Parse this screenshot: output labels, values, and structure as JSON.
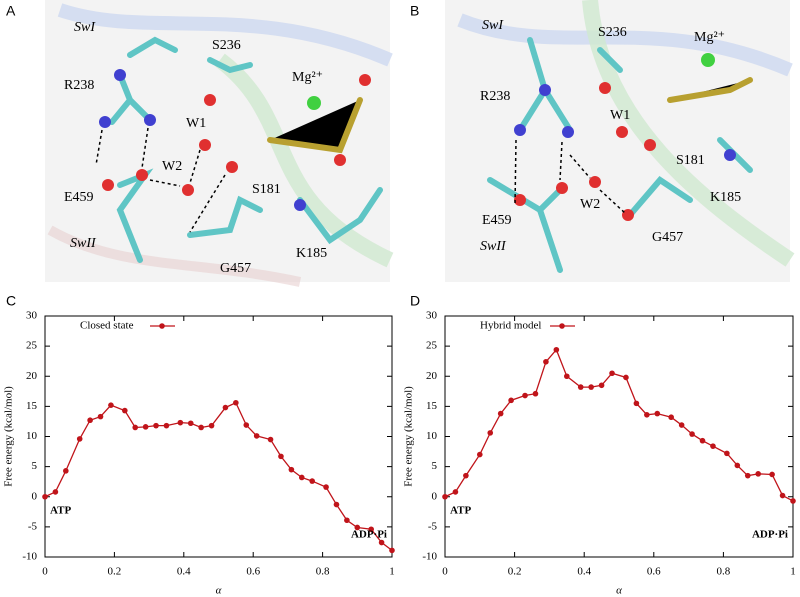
{
  "panels": [
    {
      "letter": "A",
      "labels": [
        "SwI",
        "S236",
        "R238",
        "Mg²⁺",
        "W1",
        "W2",
        "E459",
        "S181",
        "SwII",
        "G457",
        "K185"
      ]
    },
    {
      "letter": "B",
      "labels": [
        "SwI",
        "S236",
        "Mg²⁺",
        "R238",
        "W1",
        "S181",
        "E459",
        "W2",
        "K185",
        "SwII",
        "G457"
      ]
    }
  ],
  "chart_data": [
    {
      "type": "line",
      "panel": "C",
      "xlabel": "α",
      "ylabel": "Free energy (kcal/mol)",
      "xlim": [
        0,
        1
      ],
      "ylim": [
        -10,
        30
      ],
      "xticks": [
        0,
        0.2,
        0.4,
        0.6,
        0.8,
        1
      ],
      "yticks": [
        -10,
        -5,
        0,
        5,
        10,
        15,
        20,
        25,
        30
      ],
      "annotations": [
        "ATP",
        "ADP·Pi"
      ],
      "x": [
        0,
        0.03,
        0.06,
        0.1,
        0.13,
        0.16,
        0.19,
        0.23,
        0.26,
        0.29,
        0.32,
        0.35,
        0.39,
        0.42,
        0.45,
        0.48,
        0.52,
        0.55,
        0.58,
        0.61,
        0.65,
        0.68,
        0.71,
        0.74,
        0.77,
        0.81,
        0.84,
        0.87,
        0.9,
        0.94,
        0.97,
        1
      ],
      "series": [
        {
          "name": "Closed state",
          "color": "#c0141a",
          "values": [
            0,
            0.8,
            4.3,
            9.6,
            12.7,
            13.3,
            15.2,
            14.3,
            11.5,
            11.6,
            11.8,
            11.8,
            12.3,
            12.2,
            11.5,
            11.8,
            14.8,
            15.6,
            11.9,
            10.1,
            9.5,
            6.7,
            4.5,
            3.2,
            2.6,
            1.6,
            -1.3,
            -3.9,
            -5.1,
            -5.4,
            -7.6,
            -8.9
          ]
        }
      ]
    },
    {
      "type": "line",
      "panel": "D",
      "xlabel": "α",
      "ylabel": "Free energy (kcal/mol)",
      "xlim": [
        0,
        1
      ],
      "ylim": [
        -10,
        30
      ],
      "xticks": [
        0,
        0.2,
        0.4,
        0.6,
        0.8,
        1
      ],
      "yticks": [
        -10,
        -5,
        0,
        5,
        10,
        15,
        20,
        25,
        30
      ],
      "annotations": [
        "ATP",
        "ADP·Pi"
      ],
      "x": [
        0,
        0.03,
        0.06,
        0.1,
        0.13,
        0.16,
        0.19,
        0.23,
        0.26,
        0.29,
        0.32,
        0.35,
        0.39,
        0.42,
        0.45,
        0.48,
        0.52,
        0.55,
        0.58,
        0.61,
        0.65,
        0.68,
        0.71,
        0.74,
        0.77,
        0.81,
        0.84,
        0.87,
        0.9,
        0.94,
        0.97,
        1
      ],
      "series": [
        {
          "name": "Hybrid model",
          "color": "#c0141a",
          "values": [
            0,
            0.8,
            3.5,
            7,
            10.6,
            13.8,
            16,
            16.8,
            17.1,
            22.4,
            24.4,
            20,
            18.2,
            18.2,
            18.5,
            20.5,
            19.8,
            15.5,
            13.6,
            13.8,
            13.2,
            11.9,
            10.4,
            9.3,
            8.4,
            7.2,
            5.2,
            3.5,
            3.8,
            3.7,
            0.2,
            -0.7
          ]
        }
      ]
    }
  ]
}
